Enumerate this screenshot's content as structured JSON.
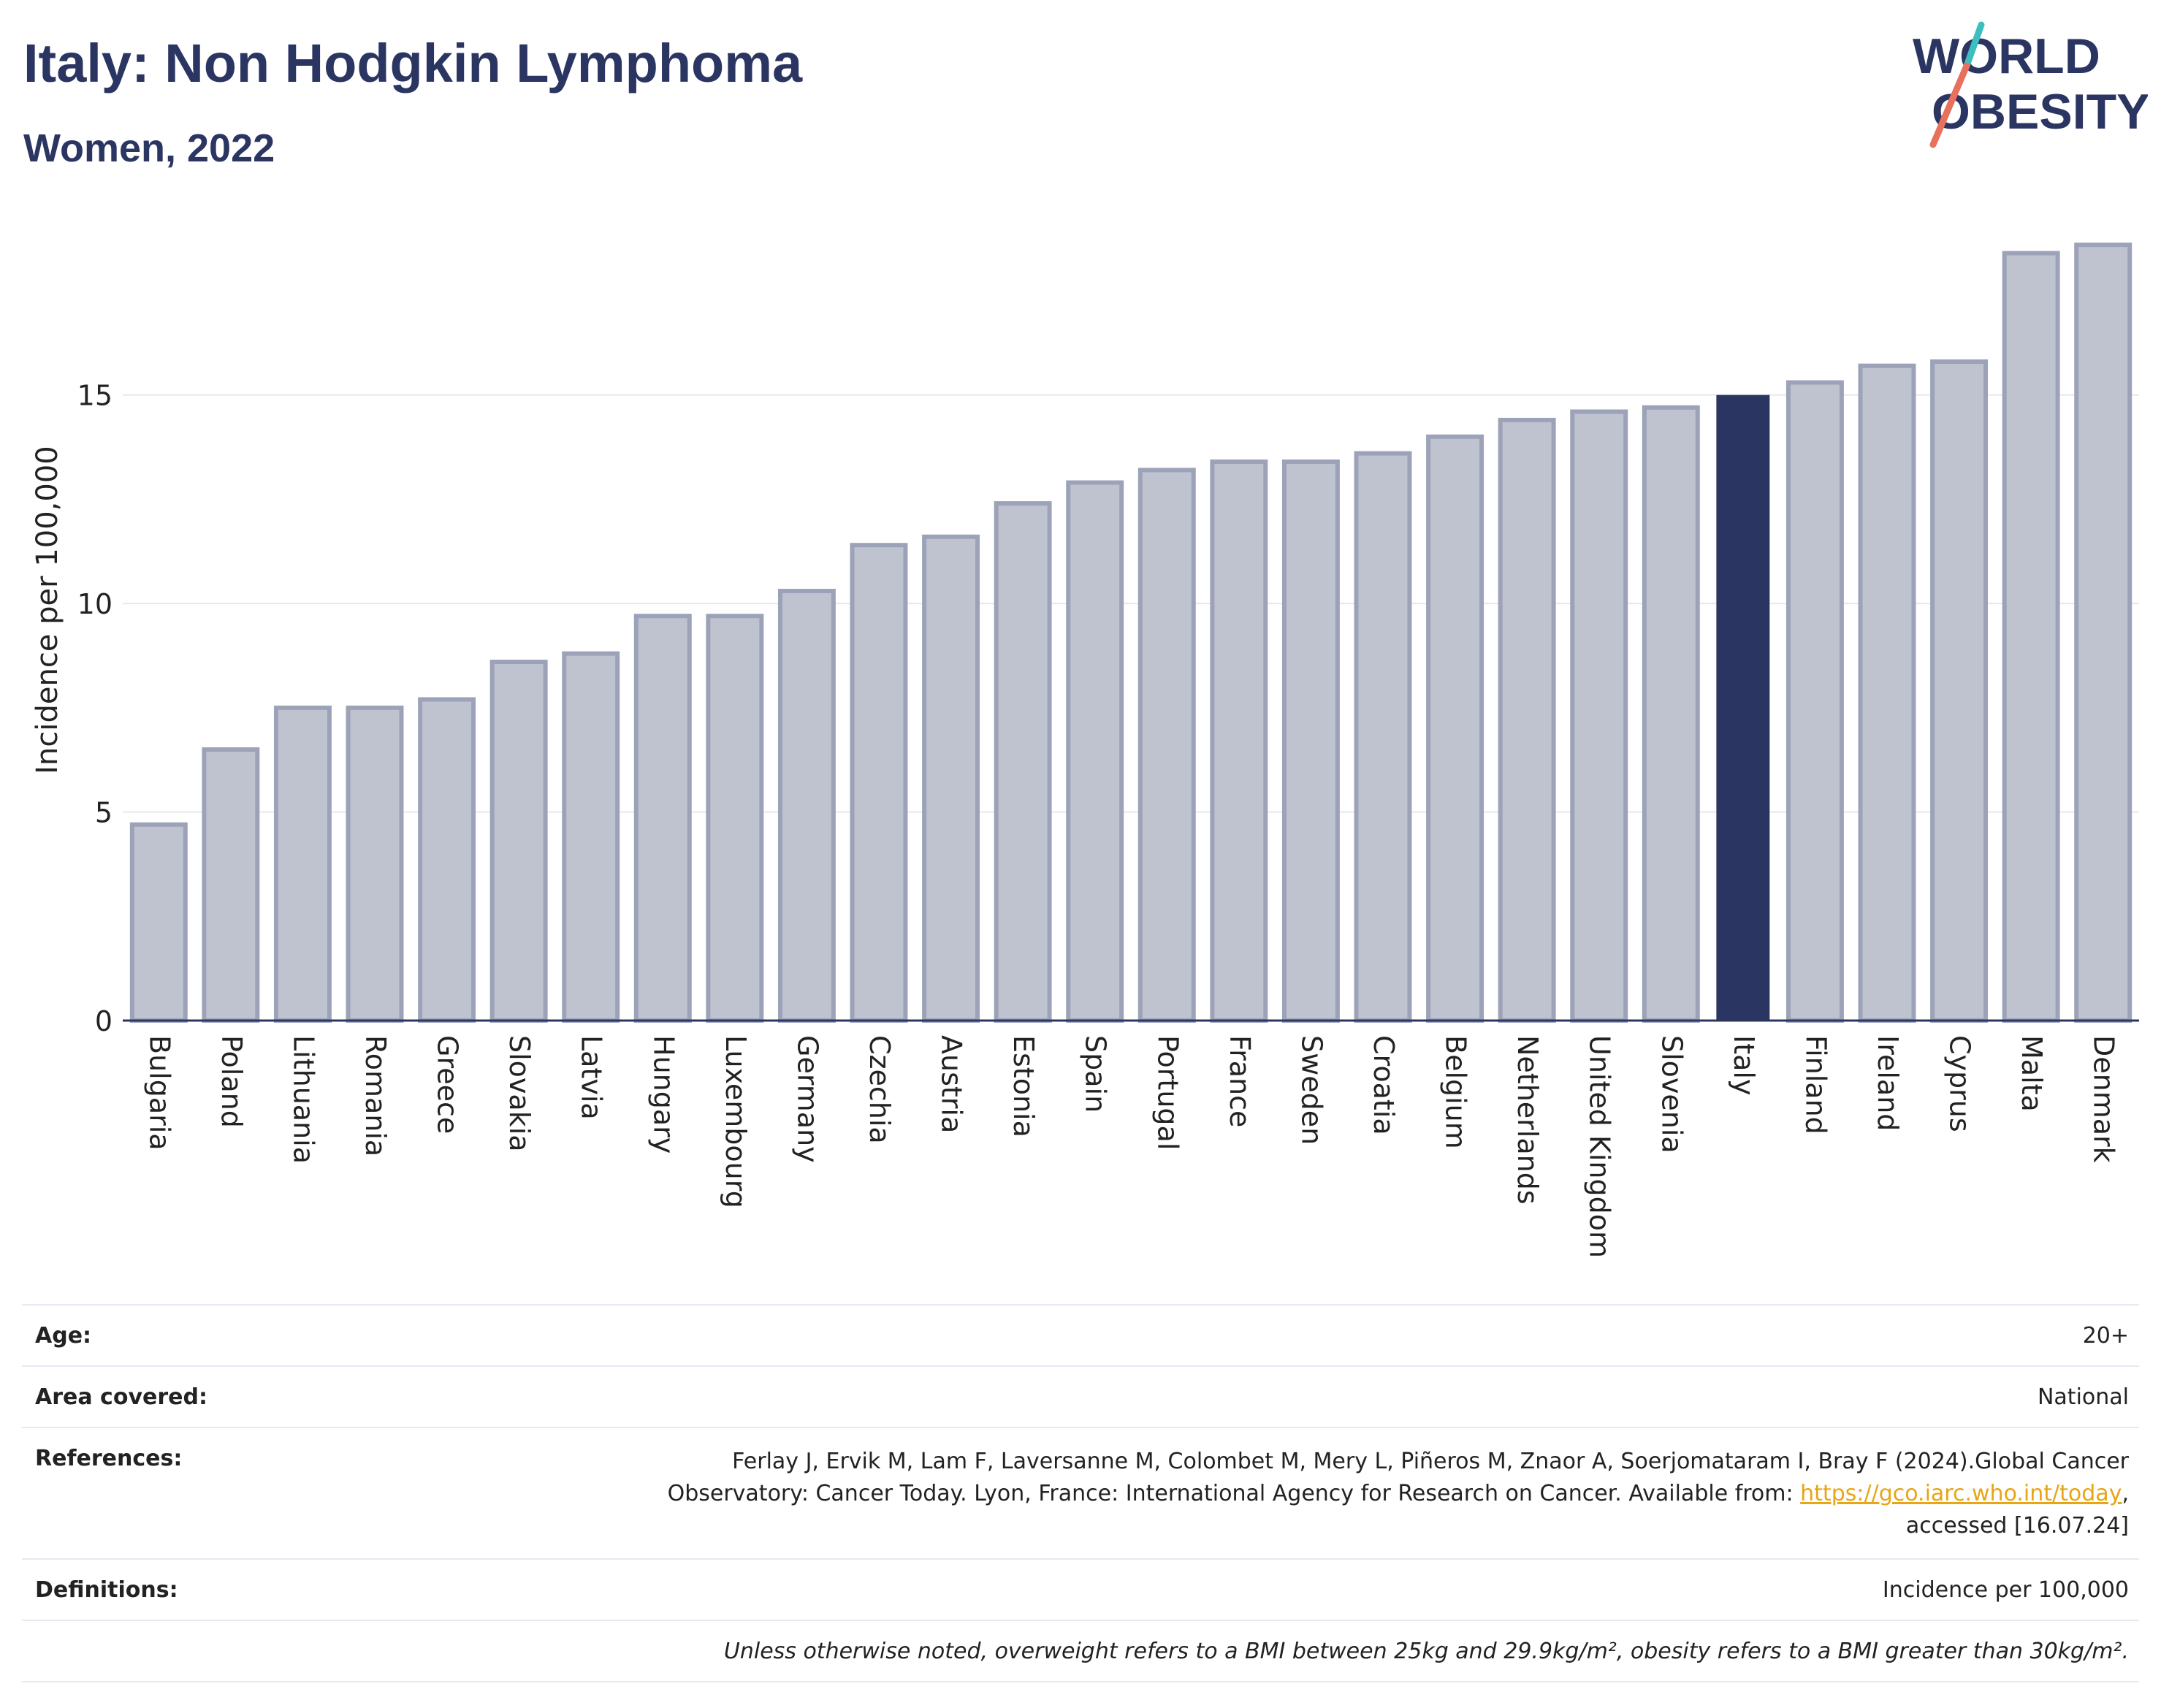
{
  "header": {
    "title": "Italy: Non Hodgkin Lymphoma",
    "subtitle": "Women, 2022"
  },
  "logo": {
    "line1": "WORLD",
    "line2": "OBESITY"
  },
  "colors": {
    "highlight": "#2b3561",
    "bar_fill": "#bfc3d0",
    "bar_stroke": "#9ca2b7",
    "grid": "#e6e8ee",
    "logo_teal": "#3dbfbf",
    "logo_coral": "#e8715e"
  },
  "chart_data": {
    "type": "bar",
    "title": "Italy: Non Hodgkin Lymphoma",
    "subtitle": "Women, 2022",
    "xlabel": "",
    "ylabel": "Incidence per 100,000",
    "ylim": [
      0,
      18.9
    ],
    "yticks": [
      0,
      5,
      10,
      15
    ],
    "grid": true,
    "highlight": "Italy",
    "categories": [
      "Bulgaria",
      "Poland",
      "Lithuania",
      "Romania",
      "Greece",
      "Slovakia",
      "Latvia",
      "Hungary",
      "Luxembourg",
      "Germany",
      "Czechia",
      "Austria",
      "Estonia",
      "Spain",
      "Portugal",
      "France",
      "Sweden",
      "Croatia",
      "Belgium",
      "Netherlands",
      "United Kingdom",
      "Slovenia",
      "Italy",
      "Finland",
      "Ireland",
      "Cyprus",
      "Malta",
      "Denmark"
    ],
    "values": [
      4.7,
      6.5,
      7.5,
      7.5,
      7.7,
      8.6,
      8.8,
      9.7,
      9.7,
      10.3,
      11.4,
      11.6,
      12.4,
      12.9,
      13.2,
      13.4,
      13.4,
      13.6,
      14.0,
      14.4,
      14.6,
      14.7,
      15.0,
      15.3,
      15.7,
      15.8,
      18.4,
      18.6
    ]
  },
  "info": {
    "age_label": "Age:",
    "age_value": "20+",
    "area_label": "Area covered:",
    "area_value": "National",
    "references_label": "References:",
    "references_text_1": "Ferlay J, Ervik M, Lam F, Laversanne M, Colombet M, Mery L, Piñeros M, Znaor A, Soerjomataram I, Bray F (2024).Global Cancer",
    "references_text_2": "Observatory: Cancer Today. Lyon, France: International Agency for Research on Cancer. Available from: ",
    "references_link": "https://gco.iarc.who.int/today",
    "references_text_3": ",",
    "references_text_4": "accessed [16.07.24]",
    "definitions_label": "Definitions:",
    "definitions_value": "Incidence per 100,000",
    "note": "Unless otherwise noted, overweight refers to a BMI between 25kg and 29.9kg/m², obesity refers to a BMI greater than 30kg/m²."
  }
}
